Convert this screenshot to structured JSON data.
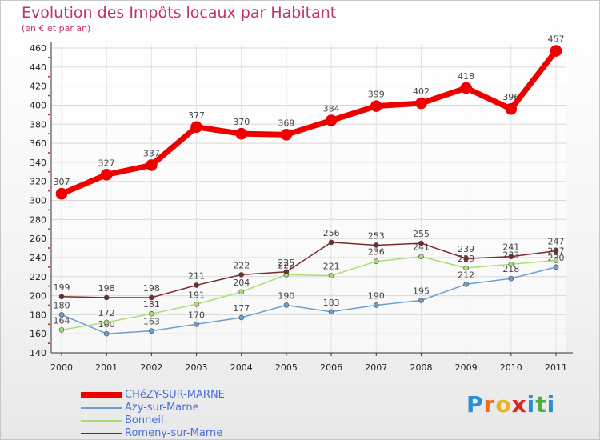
{
  "chart_data": {
    "type": "line",
    "title": "Evolution des Impôts locaux par Habitant",
    "subtitle": "(en € et par an)",
    "xlabel": "",
    "ylabel": "",
    "x": [
      "2000",
      "2001",
      "2002",
      "2003",
      "2004",
      "2005",
      "2006",
      "2007",
      "2008",
      "2009",
      "2010",
      "2011"
    ],
    "ylim": [
      140,
      460
    ],
    "yticks": [
      140,
      160,
      180,
      200,
      220,
      240,
      260,
      280,
      300,
      320,
      340,
      360,
      380,
      400,
      420,
      440,
      460
    ],
    "grid": true,
    "legend_position": "bottom-left",
    "series": [
      {
        "name": "CHéZY-SUR-MARNE",
        "color": "#ee0000",
        "width": 7,
        "marker": 7,
        "values": [
          307,
          327,
          337,
          377,
          370,
          369,
          384,
          399,
          402,
          418,
          396,
          457
        ]
      },
      {
        "name": "Azy-sur-Marne",
        "color": "#6b9fcf",
        "width": 1.5,
        "marker": 3,
        "values": [
          180,
          160,
          163,
          170,
          177,
          190,
          183,
          190,
          195,
          212,
          218,
          230
        ]
      },
      {
        "name": "Bonneil",
        "color": "#a9dd74",
        "width": 1.5,
        "marker": 3,
        "values": [
          164,
          172,
          181,
          191,
          204,
          222,
          221,
          236,
          241,
          229,
          233,
          237
        ]
      },
      {
        "name": "Romeny-sur-Marne",
        "color": "#7a2a2a",
        "width": 1.5,
        "marker": 3,
        "values": [
          199,
          198,
          198,
          211,
          222,
          225,
          256,
          253,
          255,
          239,
          241,
          247
        ]
      }
    ]
  },
  "brand": {
    "letters": [
      "P",
      "r",
      "o",
      "x",
      "i",
      "t",
      "i"
    ],
    "colors": [
      "#2a8fd8",
      "#e8731e",
      "#e8b21e",
      "#d6281e",
      "#2a8fd8",
      "#4cae3c",
      "#2a8fd8"
    ]
  }
}
